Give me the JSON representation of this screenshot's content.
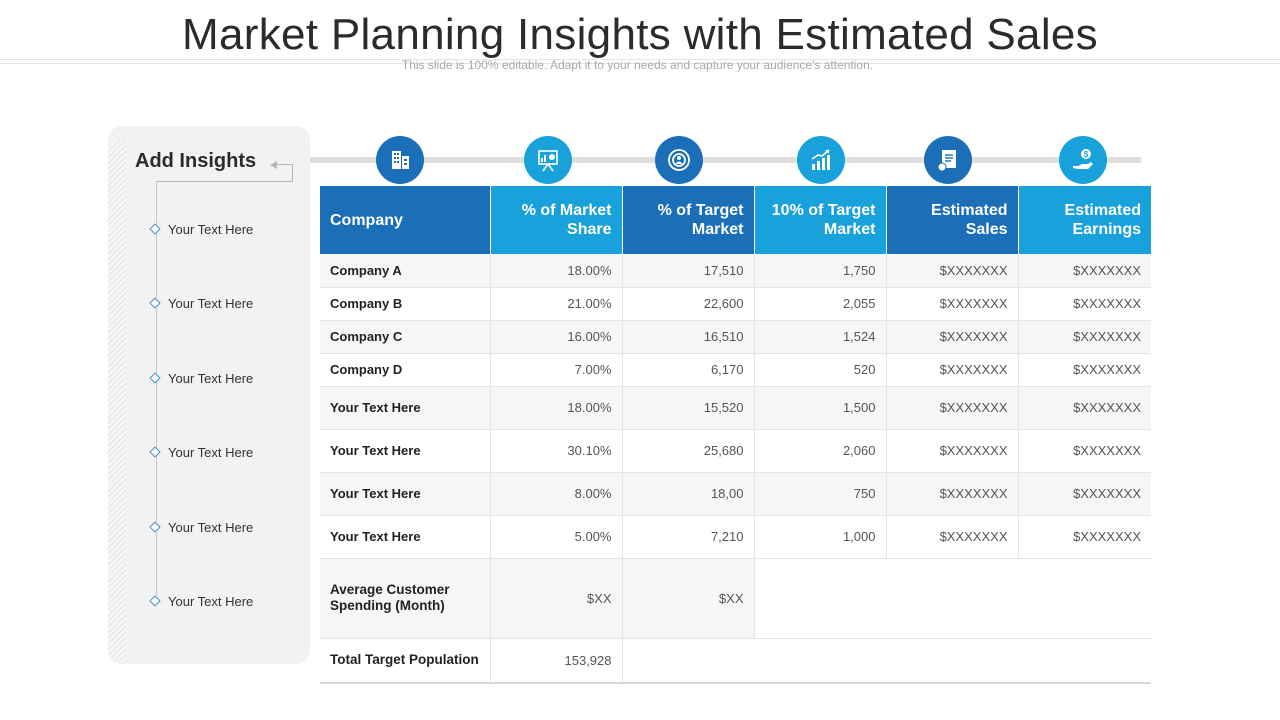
{
  "slide": {
    "title": "Market Planning Insights with Estimated Sales",
    "subtitle": "This slide is 100% editable. Adapt it to your needs and capture your audience's attention."
  },
  "sidebar": {
    "title": "Add Insights",
    "items": [
      "Your Text Here",
      "Your Text Here",
      "Your Text Here",
      "Your Text Here",
      "Your Text Here",
      "Your Text Here"
    ]
  },
  "icons": [
    {
      "name": "buildings-icon",
      "color": "#1a6fb8"
    },
    {
      "name": "analytics-board-icon",
      "color": "#19a1dc"
    },
    {
      "name": "target-user-icon",
      "color": "#1a6fb8"
    },
    {
      "name": "growth-chart-icon",
      "color": "#19a1dc"
    },
    {
      "name": "clipboard-report-icon",
      "color": "#1a6fb8"
    },
    {
      "name": "hand-money-icon",
      "color": "#19a1dc"
    }
  ],
  "table": {
    "headers": [
      "Company",
      "% of Market Share",
      "% of Target Market",
      "10% of Target Market",
      "Estimated Sales",
      "Estimated Earnings"
    ],
    "rows": [
      [
        "Company A",
        "18.00%",
        "17,510",
        "1,750",
        "$XXXXXXX",
        "$XXXXXXX"
      ],
      [
        "Company B",
        "21.00%",
        "22,600",
        "2,055",
        "$XXXXXXX",
        "$XXXXXXX"
      ],
      [
        "Company C",
        "16.00%",
        "16,510",
        "1,524",
        "$XXXXXXX",
        "$XXXXXXX"
      ],
      [
        "Company D",
        "7.00%",
        "6,170",
        "520",
        "$XXXXXXX",
        "$XXXXXXX"
      ],
      [
        "Your Text Here",
        "18.00%",
        "15,520",
        "1,500",
        "$XXXXXXX",
        "$XXXXXXX"
      ],
      [
        "Your Text Here",
        "30.10%",
        "25,680",
        "2,060",
        "$XXXXXXX",
        "$XXXXXXX"
      ],
      [
        "Your Text Here",
        "8.00%",
        "18,00",
        "750",
        "$XXXXXXX",
        "$XXXXXXX"
      ],
      [
        "Your Text Here",
        "5.00%",
        "7,210",
        "1,000",
        "$XXXXXXX",
        "$XXXXXXX"
      ]
    ],
    "average": {
      "label": "Average Customer Spending (Month)",
      "market_share": "$XX",
      "target_market": "$XX"
    },
    "total": {
      "label": "Total Target Population",
      "value": "153,928"
    }
  },
  "colors": {
    "dark_blue": "#1a6fb8",
    "light_blue": "#19a1dc",
    "accent_diamond": "#3f8fd2"
  }
}
